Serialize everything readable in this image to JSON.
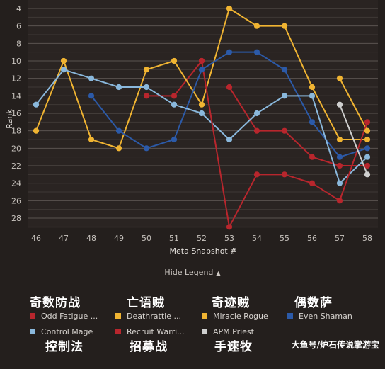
{
  "chart_data": {
    "type": "line",
    "xlabel": "Meta Snapshot #",
    "ylabel": "Rank",
    "x": [
      46,
      47,
      48,
      49,
      50,
      51,
      52,
      53,
      54,
      55,
      56,
      57,
      58
    ],
    "y_ticks": [
      4,
      6,
      8,
      10,
      12,
      14,
      16,
      18,
      20,
      22,
      24,
      26,
      28
    ],
    "ylim": [
      4,
      29
    ],
    "y_inverted": true,
    "grid": true,
    "legend_position": "bottom",
    "series": [
      {
        "name": "Odd Fatigue ...",
        "overlay": "奇数防战",
        "color": "#b8262d",
        "values": [
          null,
          null,
          null,
          null,
          14,
          14,
          10,
          null,
          null,
          null,
          null,
          null,
          null
        ]
      },
      {
        "name": "Odd Fatigue ...",
        "overlay": "奇数防战",
        "color": "#b8262d",
        "values": [
          null,
          null,
          null,
          null,
          null,
          null,
          null,
          13,
          18,
          18,
          21,
          22,
          22
        ]
      },
      {
        "name": "Deathrattle ...",
        "overlay": "亡语贼",
        "color": "#f0b432",
        "values": [
          18,
          10,
          19,
          20,
          11,
          10,
          15,
          4,
          6,
          6,
          13,
          19,
          19
        ]
      },
      {
        "name": "Miracle Rogue",
        "overlay": "奇迹贼",
        "color": "#f0b432",
        "values": [
          null,
          null,
          null,
          null,
          null,
          null,
          null,
          null,
          null,
          null,
          null,
          12,
          18
        ]
      },
      {
        "name": "Even Shaman",
        "overlay": "偶数萨",
        "color": "#2c5aa8",
        "values": [
          null,
          null,
          14,
          18,
          20,
          19,
          11,
          9,
          9,
          11,
          17,
          21,
          20
        ]
      },
      {
        "name": "Control Mage",
        "overlay": "控制法",
        "color": "#8ab8dc",
        "values": [
          15,
          11,
          12,
          13,
          13,
          15,
          16,
          19,
          16,
          14,
          14,
          24,
          21
        ]
      },
      {
        "name": "Recruit Warri...",
        "overlay": "招募战",
        "color": "#b8262d",
        "values": [
          null,
          null,
          null,
          null,
          null,
          null,
          10,
          29,
          23,
          23,
          24,
          26,
          17
        ]
      },
      {
        "name": "APM Priest",
        "overlay": "手速牧",
        "color": "#cfcfcf",
        "values": [
          null,
          null,
          null,
          null,
          null,
          null,
          null,
          null,
          null,
          null,
          null,
          15,
          23
        ]
      }
    ],
    "legend": [
      {
        "label": "Odd Fatigue ...",
        "overlay": "奇数防战",
        "color": "#b8262d"
      },
      {
        "label": "Deathrattle ...",
        "overlay": "亡语贼",
        "color": "#f0b432"
      },
      {
        "label": "Miracle Rogue",
        "overlay": "奇迹贼",
        "color": "#f0b432"
      },
      {
        "label": "Even Shaman",
        "overlay": "偶数萨",
        "color": "#2c5aa8"
      },
      {
        "label": "Control Mage",
        "overlay": "控制法",
        "color": "#8ab8dc"
      },
      {
        "label": "Recruit Warri...",
        "overlay": "招募战",
        "color": "#b8262d"
      },
      {
        "label": "APM Priest",
        "overlay": "手速牧",
        "color": "#cfcfcf"
      }
    ]
  },
  "ui": {
    "hide_legend_label": "Hide Legend",
    "watermark": "大鱼号/炉石传说掌游宝"
  }
}
